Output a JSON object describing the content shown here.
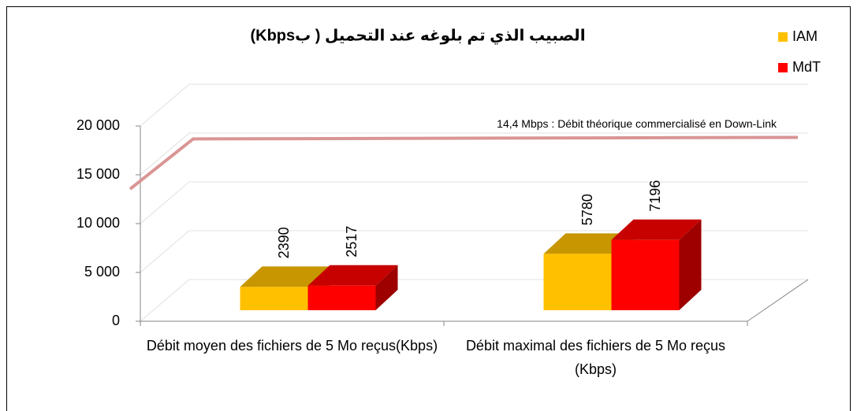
{
  "chart_data": {
    "type": "bar3d",
    "title": "الصبيب الذي تم بلوغه عند التحميل ( بKbps)",
    "categories": [
      "Débit moyen des fichiers de 5 Mo reçus(Kbps)",
      "Débit maximal des fichiers de 5 Mo reçus (Kbps)"
    ],
    "series": [
      {
        "name": "IAM",
        "color": "#ffc000",
        "values": [
          2390,
          5780
        ]
      },
      {
        "name": "MdT",
        "color": "#ff0000",
        "values": [
          2517,
          7196
        ]
      }
    ],
    "ylim": [
      0,
      20000
    ],
    "yticks": [
      0,
      {
        "value": 5000,
        "label": "5 000"
      },
      {
        "value": 10000,
        "label": "10 000"
      },
      {
        "value": 15000,
        "label": "15 000"
      },
      {
        "value": 20000,
        "label": "20 000"
      }
    ],
    "grid": true,
    "legend": "top-right",
    "reference_line": {
      "value": 14400,
      "label": "14,4 Mbps : Débit théorique commercialisé en Down-Link",
      "color": "#d99594"
    }
  }
}
